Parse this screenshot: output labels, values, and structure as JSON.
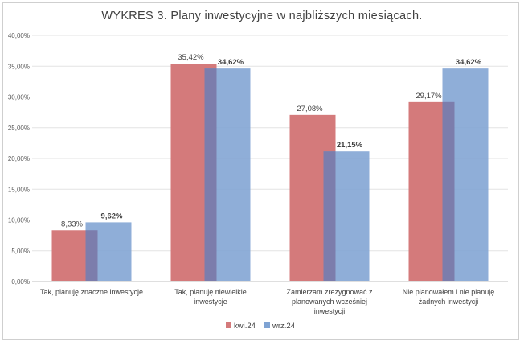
{
  "chart_data": {
    "type": "bar",
    "title": "WYKRES 3. Plany inwestycyjne w najbliższych miesiącach.",
    "categories": [
      [
        "Tak, planuję znaczne inwestycje"
      ],
      [
        "Tak, planuję niewielkie",
        "inwestycje"
      ],
      [
        "Zamierzam zrezygnować z",
        "planowanych wcześniej",
        "inwestycji"
      ],
      [
        "Nie planowałem i nie planuję",
        "żadnych inwestycji"
      ]
    ],
    "series": [
      {
        "name": "kwi.24",
        "color": "#d47a7b",
        "values": [
          8.33,
          35.42,
          27.08,
          29.17
        ],
        "labels": [
          "8,33%",
          "35,42%",
          "27,08%",
          "29,17%"
        ],
        "label_bold": false
      },
      {
        "name": "wrz.24",
        "color": "#7fa3d3",
        "values": [
          9.62,
          34.62,
          21.15,
          34.62
        ],
        "labels": [
          "9,62%",
          "34,62%",
          "21,15%",
          "34,62%"
        ],
        "label_bold": true
      }
    ],
    "ylim": [
      0,
      40
    ],
    "yticks": [
      "0,00%",
      "5,00%",
      "10,00%",
      "15,00%",
      "20,00%",
      "25,00%",
      "30,00%",
      "35,00%",
      "40,00%"
    ],
    "grid": true,
    "legend": "bottom-center"
  }
}
